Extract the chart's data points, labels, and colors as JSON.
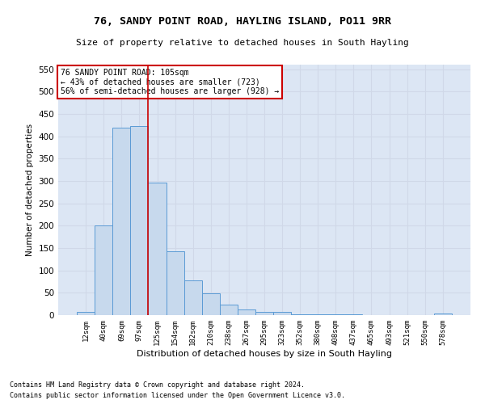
{
  "title": "76, SANDY POINT ROAD, HAYLING ISLAND, PO11 9RR",
  "subtitle": "Size of property relative to detached houses in South Hayling",
  "xlabel": "Distribution of detached houses by size in South Hayling",
  "ylabel": "Number of detached properties",
  "categories": [
    "12sqm",
    "40sqm",
    "69sqm",
    "97sqm",
    "125sqm",
    "154sqm",
    "182sqm",
    "210sqm",
    "238sqm",
    "267sqm",
    "295sqm",
    "323sqm",
    "352sqm",
    "380sqm",
    "408sqm",
    "437sqm",
    "465sqm",
    "493sqm",
    "521sqm",
    "550sqm",
    "578sqm"
  ],
  "values": [
    8,
    200,
    420,
    423,
    297,
    143,
    77,
    48,
    23,
    12,
    8,
    7,
    2,
    2,
    2,
    1,
    0,
    0,
    0,
    0,
    3
  ],
  "bar_color": "#c7d9ed",
  "bar_edge_color": "#5b9bd5",
  "vline_x": 3.5,
  "vline_color": "#cc0000",
  "annotation_line1": "76 SANDY POINT ROAD: 105sqm",
  "annotation_line2": "← 43% of detached houses are smaller (723)",
  "annotation_line3": "56% of semi-detached houses are larger (928) →",
  "annotation_box_color": "#ffffff",
  "annotation_box_edge": "#cc0000",
  "ylim": [
    0,
    560
  ],
  "yticks": [
    0,
    50,
    100,
    150,
    200,
    250,
    300,
    350,
    400,
    450,
    500,
    550
  ],
  "footer1": "Contains HM Land Registry data © Crown copyright and database right 2024.",
  "footer2": "Contains public sector information licensed under the Open Government Licence v3.0.",
  "grid_color": "#d0d8e8",
  "background_color": "#dce6f4"
}
